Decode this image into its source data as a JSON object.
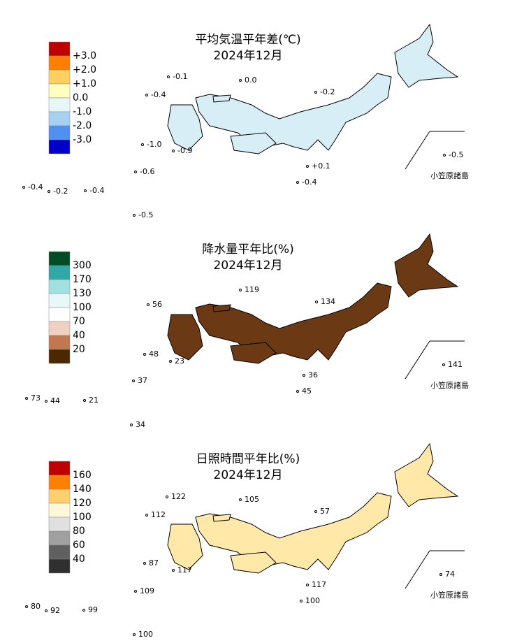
{
  "panels": [
    {
      "title": "平均気温平年差(℃)",
      "subtitle": "2024年12月",
      "legend": {
        "colors": [
          "#c00000",
          "#ff8000",
          "#ffd060",
          "#ffffc0",
          "#e8f6f8",
          "#a8d0f0",
          "#5090f0",
          "#0000c8"
        ],
        "labels": [
          "+3.0",
          "+2.0",
          "+1.0",
          "0.0",
          "-1.0",
          "-2.0",
          "-3.0"
        ]
      },
      "map_color": "#d8eef6",
      "stations": [
        "-0.1",
        "0.0",
        "-0.4",
        "-0.2",
        "-1.0",
        "-0.9",
        "+0.1",
        "-0.6",
        "-0.4",
        "-0.4",
        "-0.2",
        "-0.4",
        "-0.5",
        "-0.5"
      ],
      "inset_label": "小笠原諸島"
    },
    {
      "title": "降水量平年比(%)",
      "subtitle": "2024年12月",
      "legend": {
        "colors": [
          "#004d26",
          "#30a8a8",
          "#a0e0e0",
          "#e8f8f8",
          "#ffffff",
          "#f0d0c0",
          "#c07850",
          "#4a2800"
        ],
        "labels": [
          "300",
          "170",
          "130",
          "100",
          "70",
          "40",
          "20"
        ]
      },
      "map_color": "#6b3a14",
      "stations": [
        "119",
        "56",
        "134",
        "48",
        "23",
        "36",
        "37",
        "45",
        "73",
        "44",
        "21",
        "141",
        "34"
      ],
      "inset_label": "小笠原諸島"
    },
    {
      "title": "日照時間平年比(%)",
      "subtitle": "2024年12月",
      "legend": {
        "colors": [
          "#c00000",
          "#ff8000",
          "#ffd070",
          "#fff8d8",
          "#e0e0e0",
          "#a0a0a0",
          "#606060",
          "#303030"
        ],
        "labels": [
          "160",
          "140",
          "120",
          "100",
          "80",
          "60",
          "40"
        ]
      },
      "map_color": "#ffe8a8",
      "stations": [
        "122",
        "105",
        "112",
        "57",
        "87",
        "117",
        "117",
        "109",
        "100",
        "80",
        "92",
        "99",
        "74",
        "100"
      ],
      "inset_label": "小笠原諸島"
    }
  ]
}
